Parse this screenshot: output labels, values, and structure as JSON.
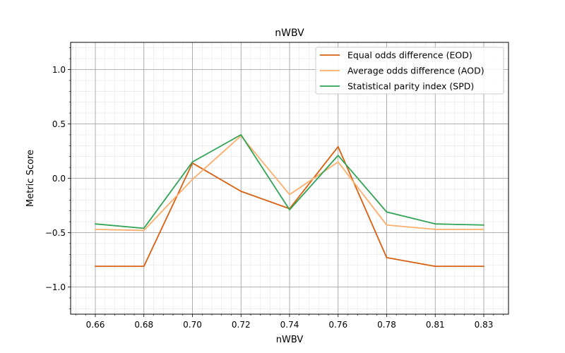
{
  "chart_data": {
    "type": "line",
    "title": "nWBV",
    "xlabel": "nWBV",
    "ylabel": "Metric Score",
    "categories": [
      "0.66",
      "0.68",
      "0.70",
      "0.72",
      "0.74",
      "0.76",
      "0.78",
      "0.81",
      "0.83"
    ],
    "ylim": [
      -1.25,
      1.25
    ],
    "yticks": [
      -1.0,
      -0.5,
      0.0,
      0.5,
      1.0
    ],
    "ytick_labels": [
      "−1.0",
      "−0.5",
      "0.0",
      "0.5",
      "1.0"
    ],
    "grid": true,
    "minor_grid": true,
    "legend_position": "top-right",
    "series": [
      {
        "name": "Equal odds difference (EOD)",
        "color": "#d95f0e",
        "values": [
          -0.81,
          -0.81,
          0.14,
          -0.12,
          -0.28,
          0.29,
          -0.73,
          -0.81,
          -0.81
        ]
      },
      {
        "name": "Average odds difference (AOD)",
        "color": "#fdae6b",
        "values": [
          -0.47,
          -0.48,
          -0.01,
          0.39,
          -0.15,
          0.15,
          -0.43,
          -0.47,
          -0.47
        ]
      },
      {
        "name": "Statistical parity index (SPD)",
        "color": "#31a354",
        "values": [
          -0.42,
          -0.46,
          0.15,
          0.4,
          -0.29,
          0.21,
          -0.31,
          -0.42,
          -0.43
        ]
      }
    ]
  }
}
